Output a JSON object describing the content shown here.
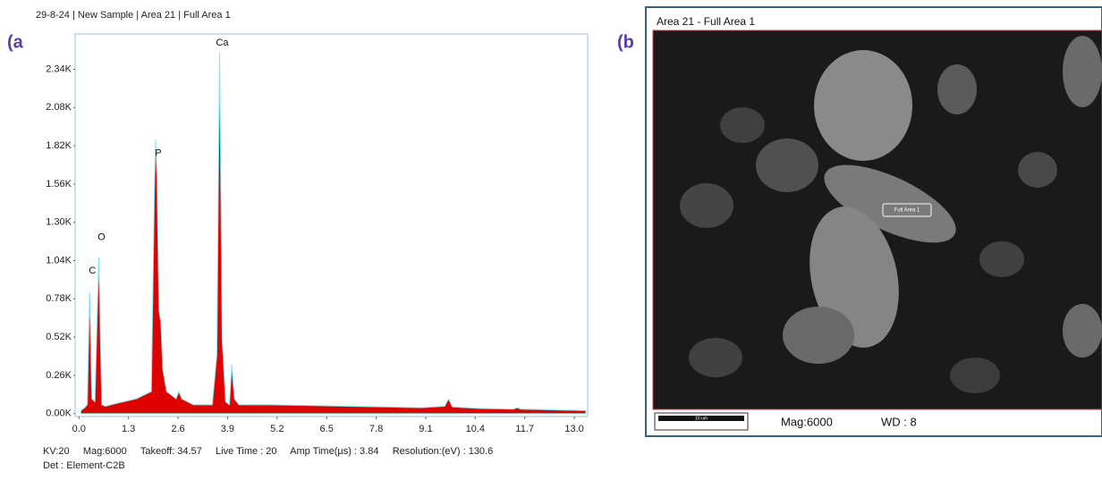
{
  "panels": [
    "(a",
    "(b"
  ],
  "chart_data": {
    "type": "area",
    "title": "29-8-24 | New Sample | Area 21 | Full Area 1",
    "x": [
      0.05,
      0.15,
      0.22,
      0.28,
      0.34,
      0.42,
      0.52,
      0.6,
      0.7,
      1.0,
      1.5,
      1.9,
      1.98,
      2.01,
      2.05,
      2.1,
      2.15,
      2.2,
      2.3,
      2.55,
      2.62,
      2.7,
      3.0,
      3.5,
      3.62,
      3.69,
      3.76,
      3.85,
      3.95,
      4.01,
      4.08,
      4.2,
      5,
      6,
      7,
      8,
      9,
      9.6,
      9.7,
      9.8,
      10.5,
      11.4,
      11.5,
      11.6,
      12.5,
      13.3
    ],
    "values": [
      20,
      40,
      60,
      820,
      100,
      80,
      1060,
      60,
      50,
      70,
      100,
      150,
      1500,
      1860,
      1600,
      700,
      620,
      300,
      150,
      100,
      150,
      100,
      60,
      60,
      400,
      2450,
      500,
      80,
      60,
      330,
      100,
      60,
      60,
      55,
      50,
      45,
      40,
      50,
      100,
      45,
      35,
      30,
      40,
      30,
      25,
      20
    ],
    "color": "#e00000",
    "edge_color": "#80e4f0",
    "xlim": [
      -0.1,
      13.35
    ],
    "ylim": [
      -20,
      2580
    ],
    "xticks": [
      {
        "value": 0,
        "label": "0.0"
      },
      1.3,
      2.6,
      3.9,
      5.2,
      6.5,
      7.8,
      9.1,
      10.4,
      11.7,
      {
        "value": 13,
        "label": "13.0"
      }
    ],
    "yticks": [
      {
        "value": 0,
        "label": "0.00K"
      },
      {
        "value": 260,
        "label": "0.26K"
      },
      {
        "value": 520,
        "label": "0.52K"
      },
      {
        "value": 780,
        "label": "0.78K"
      },
      {
        "value": 1040,
        "label": "1.04K"
      },
      {
        "value": 1300,
        "label": "1.30K"
      },
      {
        "value": 1560,
        "label": "1.56K"
      },
      {
        "value": 1820,
        "label": "1.82K"
      },
      {
        "value": 2080,
        "label": "2.08K"
      },
      {
        "value": 2340,
        "label": "2.34K"
      }
    ],
    "annotations": [
      {
        "text": "C",
        "x": 0.28,
        "y": 920
      },
      {
        "text": "O",
        "x": 0.52,
        "y": 1150
      },
      {
        "text": "P",
        "x": 2.01,
        "y": 1720
      },
      {
        "text": "Ca",
        "x": 3.69,
        "y": 2470
      }
    ]
  },
  "footer": [
    "KV:20     Mag:6000     Takeoff: 34.57     Live Time : 20     Amp Time(µs) : 3.84     Resolution:(eV) : 130.6",
    "Det : Element-C2B"
  ],
  "image": {
    "title": "Area 21 - Full Area 1",
    "region_label": "Full Area 1",
    "scale_bar": "10 um",
    "mag": "Mag:6000",
    "wd": "WD : 8"
  }
}
